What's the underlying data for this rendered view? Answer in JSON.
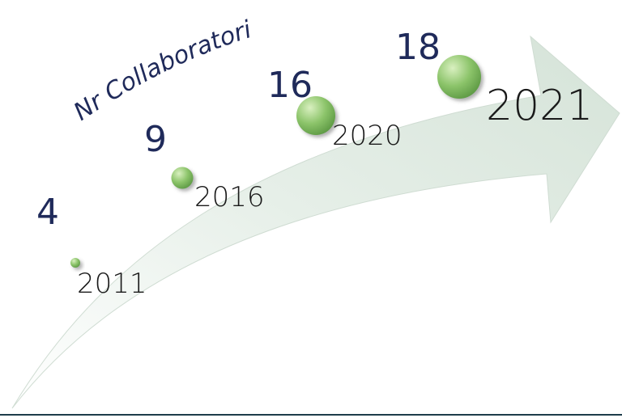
{
  "title": "Nr Collaboratori",
  "items": [
    {
      "year": "2011",
      "count": 4
    },
    {
      "year": "2016",
      "count": 9
    },
    {
      "year": "2020",
      "count": 16
    },
    {
      "year": "2021",
      "count": 18
    }
  ]
}
